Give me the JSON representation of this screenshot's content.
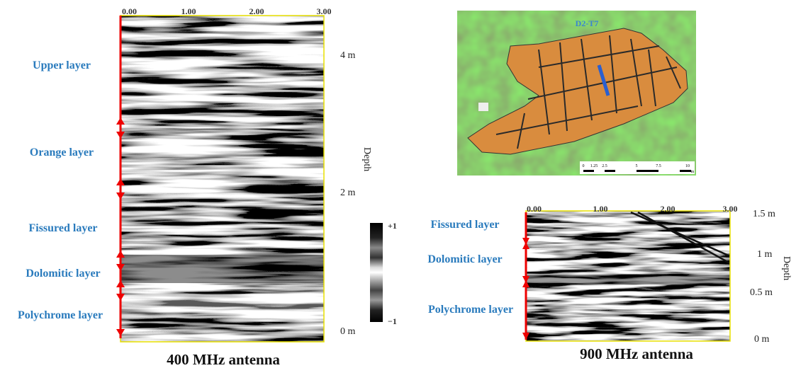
{
  "left_panel": {
    "x_ticks": [
      "0.00",
      "1.00",
      "2.00",
      "3.00"
    ],
    "depth_labels": [
      "4 m",
      "2 m",
      "0 m"
    ],
    "depth_title": "Depth",
    "layers": [
      "Upper layer",
      "Orange layer",
      "Fissured layer",
      "Dolomitic layer",
      "Polychrome layer"
    ],
    "caption": "400 MHz antenna"
  },
  "colorbar": {
    "max": "+1",
    "min": "−1"
  },
  "map": {
    "title": "D2-T7",
    "scale_labels": [
      "0",
      "1.25",
      "2.5",
      "5",
      "7.5",
      "10"
    ],
    "scale_unit": "m"
  },
  "right_panel": {
    "x_ticks": [
      "0.00",
      "1.00",
      "2.00",
      "3.00"
    ],
    "depth_labels": [
      "1.5 m",
      "1 m",
      "0.5 m",
      "0 m"
    ],
    "depth_title": "Depth",
    "layers": [
      "Fissured layer",
      "Dolomitic layer",
      "Polychrome layer"
    ],
    "caption": "900 MHz antenna"
  }
}
